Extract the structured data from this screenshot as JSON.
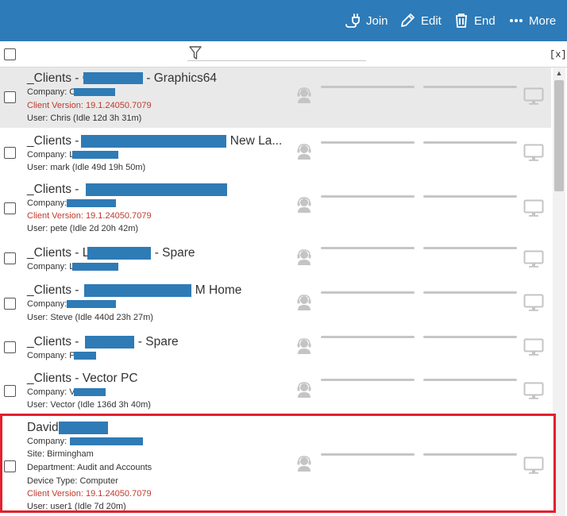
{
  "toolbar": {
    "join_label": "Join",
    "edit_label": "Edit",
    "end_label": "End",
    "more_label": "More",
    "color": "#2d7bb8"
  },
  "filter": {
    "clear_label": "[x]"
  },
  "highlight_color": "#e3202d",
  "sessions": [
    {
      "title_prefix": "_Clients - C",
      "title_suffix": "- Graphics64",
      "company_label": "Company: C",
      "version": "Client Version: 19.1.24050.7079",
      "user": "User: Chris (Idle 12d 3h 31m)"
    },
    {
      "title_prefix": "_Clients -",
      "title_suffix": "New La...",
      "company_label": "Company: L",
      "user": "User: mark (Idle 49d 19h 50m)"
    },
    {
      "title_prefix": "_Clients -",
      "title_suffix": "",
      "company_label": "Company:",
      "version": "Client Version: 19.1.24050.7079",
      "user": "User: pete (Idle 2d 20h 42m)"
    },
    {
      "title_prefix": "_Clients - L",
      "title_suffix": "- Spare",
      "company_label": "Company: L"
    },
    {
      "title_prefix": "_Clients -",
      "title_suffix": "M Home",
      "company_label": "Company:",
      "user": "User: Steve (Idle 440d 23h 27m)"
    },
    {
      "title_prefix": "_Clients -",
      "title_suffix": "- Spare",
      "company_label": "Company: P"
    },
    {
      "title_prefix": "_Clients - Vector PC",
      "title_suffix": "",
      "company_label": "Company: V",
      "user": "User: Vector (Idle 136d 3h 40m)"
    },
    {
      "title_prefix": "David",
      "title_suffix": "",
      "company_label": "Company:",
      "site": "Site: Birmingham",
      "department": "Department: Audit and Accounts",
      "device_type": "Device Type: Computer",
      "version": "Client Version: 19.1.24050.7079",
      "user": "User: user1 (Idle 7d 20m)"
    }
  ]
}
